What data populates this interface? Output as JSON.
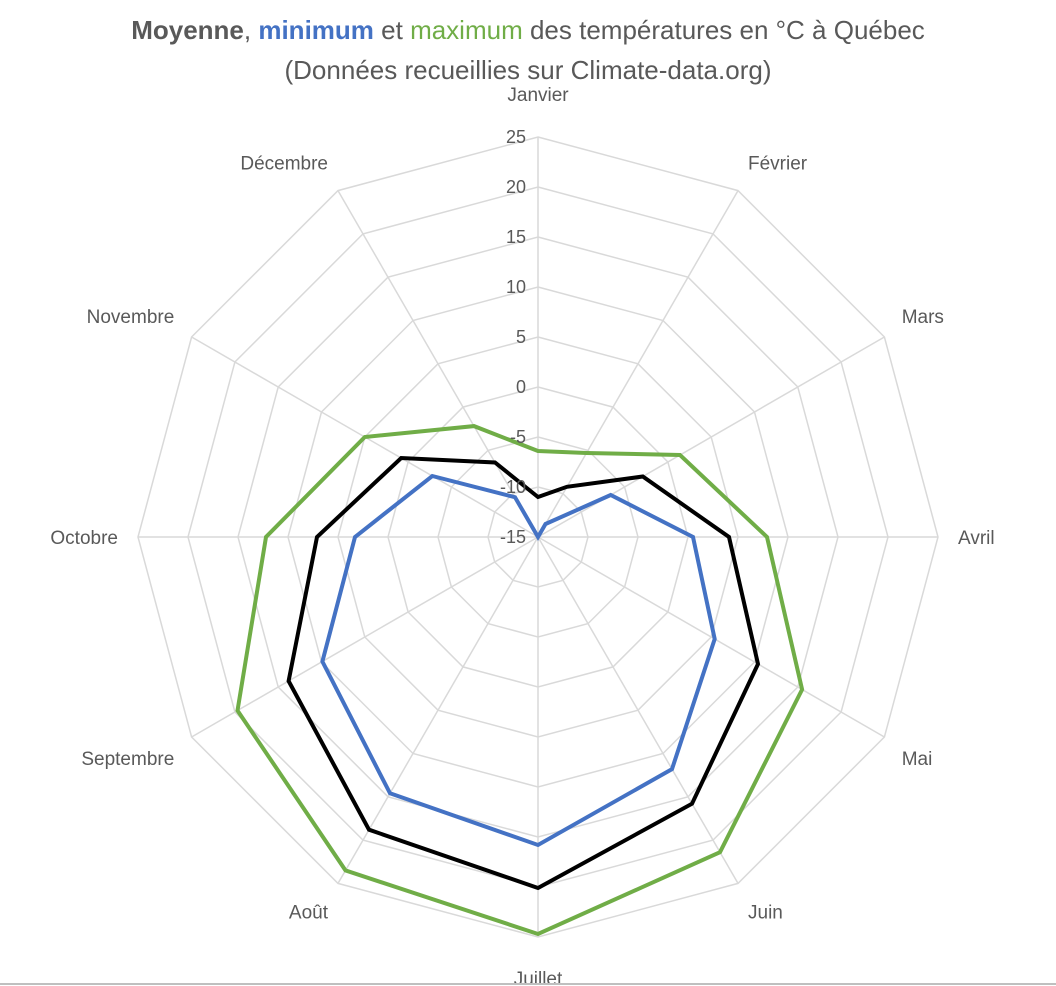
{
  "title": {
    "part_mean": "Moyenne",
    "sep1": ", ",
    "part_min": "minimum",
    "sep2": " et ",
    "part_max": "maximum",
    "rest": " des températures en °C à Québec",
    "line2": "(Données recueillies sur Climate-data.org)"
  },
  "colors": {
    "mean": "#000000",
    "min": "#4472c4",
    "max": "#70ad47",
    "grid": "#d9d9d9",
    "text": "#595959"
  },
  "chart_data": {
    "type": "radar",
    "categories": [
      "Janvier",
      "Février",
      "Mars",
      "Avril",
      "Mai",
      "Juin",
      "Juillet",
      "Août",
      "Septembre",
      "Octobre",
      "Novembre",
      "Décembre"
    ],
    "ylim": [
      -15,
      25
    ],
    "ticks": [
      "-15",
      "-10",
      "-5",
      "0",
      "5",
      "10",
      "15",
      "20",
      "25"
    ],
    "series": [
      {
        "key": "min",
        "values": [
          -15.0,
          -13.5,
          -6.6,
          0.5,
          5.4,
          11.8,
          15.8,
          14.6,
          9.9,
          3.3,
          -2.8,
          -10.4
        ]
      },
      {
        "key": "mean",
        "values": [
          -11.0,
          -9.2,
          -2.9,
          4.1,
          10.4,
          15.8,
          20.1,
          18.8,
          13.8,
          7.1,
          0.8,
          -6.4
        ]
      },
      {
        "key": "max",
        "values": [
          -6.4,
          -5.3,
          1.4,
          7.9,
          15.5,
          21.4,
          24.7,
          23.5,
          19.7,
          12.2,
          5.0,
          -2.2
        ]
      }
    ],
    "grid": true
  }
}
